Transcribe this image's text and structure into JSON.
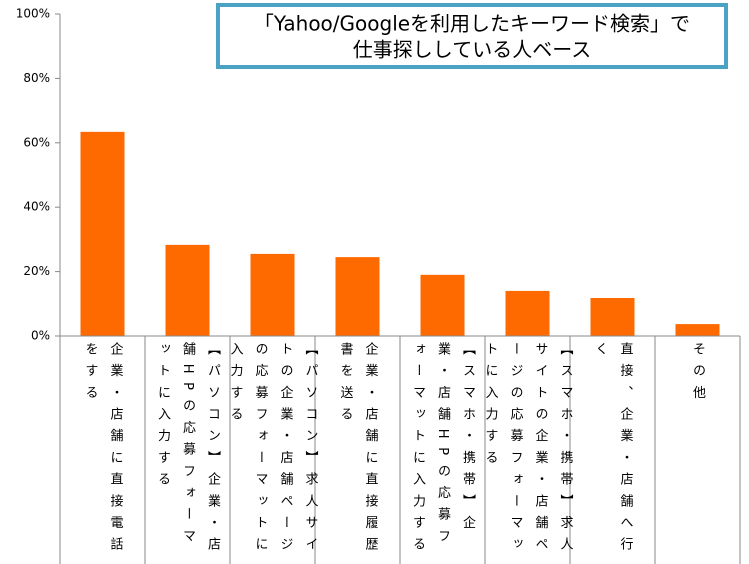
{
  "chart_data": {
    "type": "bar",
    "annotation": [
      "「Yahoo/Googleを利用したキーワード検索」で",
      "仕事探ししている人ベース"
    ],
    "categories": [
      "企業・店舗に直接電話をする",
      "【パソコン】企業・店舗HPの応募フォーマットに入力する",
      "【パソコン】求人サイトの企業・店舗ページの応募フォーマットに入力する",
      "企業・店舗に直接履歴書を送る",
      "【スマホ・携帯】企業・店舗HPの応募フォーマットに入力する",
      "【スマホ・携帯】求人サイトの企業・店舗ページの応募フォーマットに入力する",
      "直接、企業・店舗へ行く",
      "その他"
    ],
    "values": [
      63.4,
      28.3,
      25.5,
      24.5,
      19,
      14,
      11.8,
      3.7
    ],
    "color": "#ff6a00",
    "ylim": [
      0,
      100
    ],
    "yticks": [
      {
        "value": 0,
        "label": "0%"
      },
      {
        "value": 20,
        "label": "20%"
      },
      {
        "value": 40,
        "label": "40%"
      },
      {
        "value": 60,
        "label": "60%"
      },
      {
        "value": 80,
        "label": "80%"
      },
      {
        "value": 100,
        "label": "100%"
      }
    ],
    "grid": false
  }
}
